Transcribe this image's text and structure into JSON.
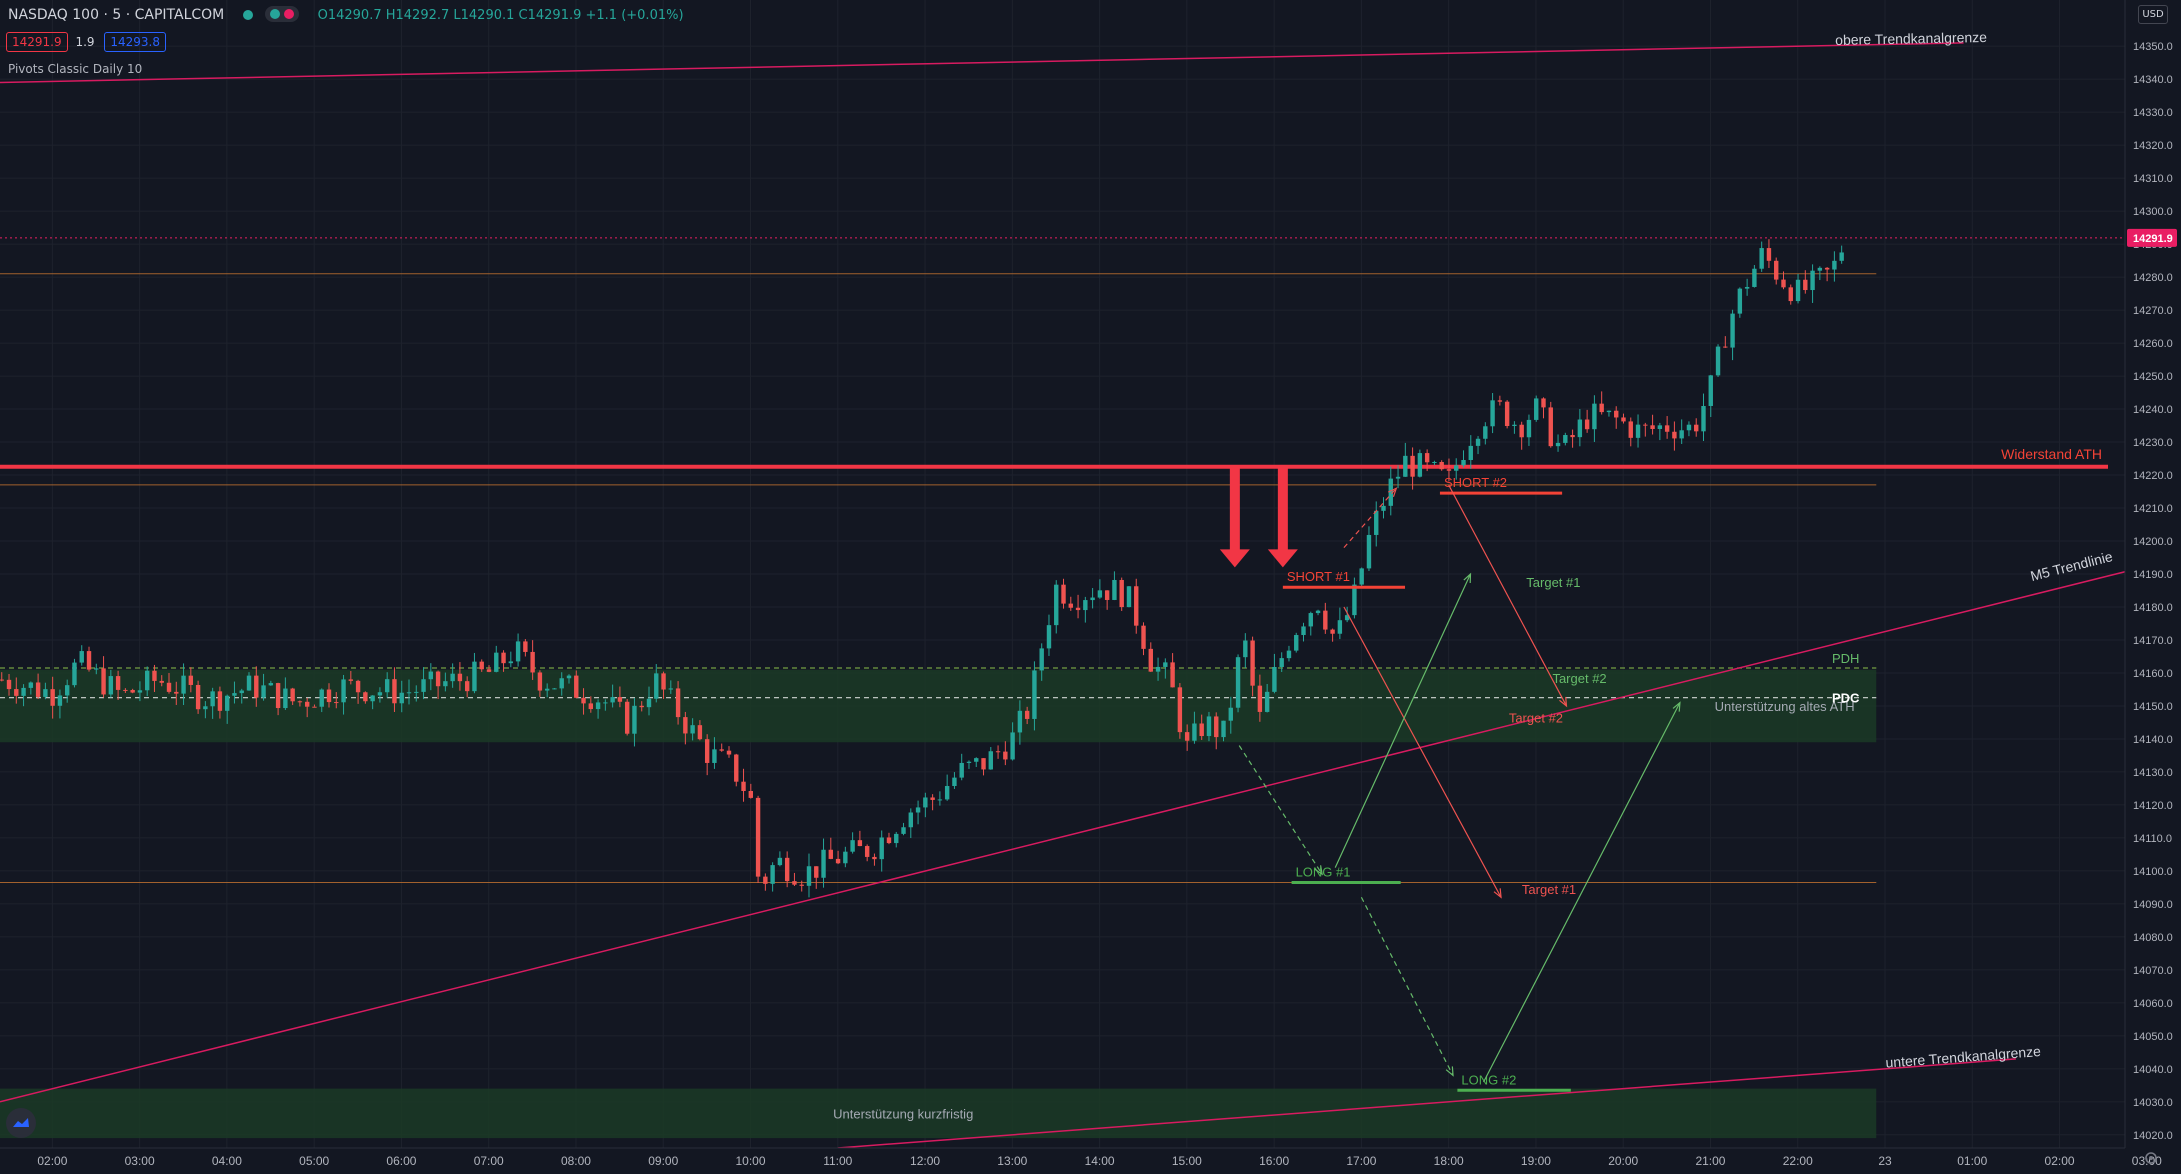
{
  "header": {
    "symbol": "NASDAQ 100 · 5 · CAPITALCOM",
    "ohlc": "O14290.7 H14292.7 L14290.1 C14291.9 +1.1 (+0.01%)",
    "sell_price": "14291.9",
    "spread": "1.9",
    "buy_price": "14293.8",
    "indicator": "Pivots Classic Daily 10",
    "currency": "USD"
  },
  "icons": [
    "gear-icon",
    "tradingview-logo-icon"
  ],
  "colors": {
    "background": "#131722",
    "up": "#26a69a",
    "down": "#ef5350",
    "resistance": "#f23645",
    "trend": "#d81b60",
    "zone": "#1b3a26",
    "long": "#4caf50",
    "short": "#f44336"
  },
  "chart_data": {
    "type": "candlestick",
    "title": "",
    "xlabel": "",
    "ylabel": "",
    "x_ticks": [
      "02:00",
      "03:00",
      "04:00",
      "05:00",
      "06:00",
      "07:00",
      "08:00",
      "09:00",
      "10:00",
      "11:00",
      "12:00",
      "13:00",
      "14:00",
      "15:00",
      "16:00",
      "17:00",
      "18:00",
      "19:00",
      "20:00",
      "21:00",
      "22:00",
      "23",
      "01:00",
      "02:00",
      "03:00"
    ],
    "y_ticks": [
      14020.0,
      14030.0,
      14040.0,
      14050.0,
      14060.0,
      14070.0,
      14080.0,
      14090.0,
      14100.0,
      14110.0,
      14120.0,
      14130.0,
      14140.0,
      14150.0,
      14160.0,
      14170.0,
      14180.0,
      14190.0,
      14200.0,
      14210.0,
      14220.0,
      14230.0,
      14240.0,
      14250.0,
      14260.0,
      14270.0,
      14280.0,
      14290.0,
      14300.0,
      14310.0,
      14320.0,
      14330.0,
      14340.0,
      14350.0
    ],
    "ylim": [
      14016,
      14364
    ],
    "xlim": [
      1.4,
      25.75
    ],
    "last_price": {
      "value": "14291.9",
      "time": 22.55
    },
    "price_path": [
      [
        1.42,
        14158
      ],
      [
        2.0,
        14154
      ],
      [
        2.3,
        14163
      ],
      [
        2.8,
        14153
      ],
      [
        3.2,
        14158
      ],
      [
        3.8,
        14152
      ],
      [
        4.3,
        14156
      ],
      [
        4.8,
        14151
      ],
      [
        5.3,
        14156
      ],
      [
        6.0,
        14154
      ],
      [
        6.5,
        14157
      ],
      [
        7.0,
        14160
      ],
      [
        7.3,
        14167
      ],
      [
        7.6,
        14158
      ],
      [
        8.0,
        14155
      ],
      [
        8.3,
        14152
      ],
      [
        8.6,
        14145
      ],
      [
        8.9,
        14158
      ],
      [
        9.2,
        14147
      ],
      [
        9.5,
        14136
      ],
      [
        9.8,
        14131
      ],
      [
        10.0,
        14122
      ],
      [
        10.1,
        14095
      ],
      [
        10.3,
        14103
      ],
      [
        10.6,
        14099
      ],
      [
        11.0,
        14104
      ],
      [
        11.4,
        14107
      ],
      [
        11.8,
        14118
      ],
      [
        12.1,
        14122
      ],
      [
        12.4,
        14130
      ],
      [
        12.7,
        14133
      ],
      [
        13.0,
        14140
      ],
      [
        13.2,
        14150
      ],
      [
        13.35,
        14170
      ],
      [
        13.5,
        14186
      ],
      [
        13.7,
        14183
      ],
      [
        14.0,
        14186
      ],
      [
        14.3,
        14184
      ],
      [
        14.45,
        14175
      ],
      [
        14.6,
        14163
      ],
      [
        14.8,
        14158
      ],
      [
        15.0,
        14137
      ],
      [
        15.2,
        14145
      ],
      [
        15.45,
        14141
      ],
      [
        15.55,
        14160
      ],
      [
        15.7,
        14170
      ],
      [
        15.8,
        14143
      ],
      [
        16.0,
        14159
      ],
      [
        16.15,
        14169
      ],
      [
        16.3,
        14176
      ],
      [
        16.5,
        14182
      ],
      [
        16.7,
        14170
      ],
      [
        16.9,
        14181
      ],
      [
        17.1,
        14202
      ],
      [
        17.3,
        14215
      ],
      [
        17.5,
        14224
      ],
      [
        17.7,
        14222
      ],
      [
        18.0,
        14218
      ],
      [
        18.2,
        14230
      ],
      [
        18.4,
        14238
      ],
      [
        18.6,
        14240
      ],
      [
        18.8,
        14235
      ],
      [
        19.0,
        14240
      ],
      [
        19.3,
        14227
      ],
      [
        19.6,
        14238
      ],
      [
        19.9,
        14237
      ],
      [
        20.2,
        14233
      ],
      [
        20.5,
        14235
      ],
      [
        20.8,
        14234
      ],
      [
        21.0,
        14246
      ],
      [
        21.2,
        14266
      ],
      [
        21.4,
        14278
      ],
      [
        21.6,
        14287
      ],
      [
        21.8,
        14280
      ],
      [
        22.0,
        14275
      ],
      [
        22.2,
        14278
      ],
      [
        22.4,
        14282
      ],
      [
        22.55,
        14291.9
      ]
    ],
    "series": [
      {
        "name": "PDH",
        "value": 14161.5,
        "x": [
          1.4,
          22.9
        ]
      },
      {
        "name": "PDC",
        "value": 14152.5,
        "x": [
          1.4,
          22.9
        ]
      }
    ],
    "horizontal_levels": [
      {
        "label": "Widerstand ATH",
        "value": 14222.5
      },
      {
        "label": "",
        "value": 14217.0
      },
      {
        "label": "",
        "value": 14281.0
      },
      {
        "label": "",
        "value": 14096.5
      }
    ],
    "zones": [
      {
        "label": "Unterstützung altes ATH",
        "from": 14139,
        "to": 14161
      },
      {
        "label": "Unterstützung kurzfristig",
        "from": 14019,
        "to": 14034
      }
    ],
    "trendlines": [
      {
        "label": "obere Trendkanalgrenze",
        "from": [
          1.4,
          14339
        ],
        "to": [
          23.9,
          14351
        ]
      },
      {
        "label": "M5 Trendlinie",
        "from": [
          1.4,
          14030
        ],
        "to": [
          26.1,
          14193
        ]
      },
      {
        "label": "untere Trendkanalgrenze",
        "from": [
          11.0,
          14016
        ],
        "to": [
          24.5,
          14043
        ]
      }
    ],
    "entries": [
      {
        "label": "SHORT #1",
        "value": 14186,
        "x": [
          16.1,
          17.5
        ]
      },
      {
        "label": "SHORT #2",
        "value": 14214.5,
        "x": [
          17.9,
          19.3
        ]
      },
      {
        "label": "LONG #1",
        "value": 14096.5,
        "x": [
          16.2,
          17.45
        ]
      },
      {
        "label": "LONG #2",
        "value": 14033.5,
        "x": [
          18.1,
          19.4
        ]
      }
    ],
    "targets": [
      {
        "label": "Target #1",
        "color": "green",
        "value": 14186
      },
      {
        "label": "Target #2",
        "color": "green",
        "value": 14157
      },
      {
        "label": "Target #2",
        "color": "red",
        "value": 14145
      },
      {
        "label": "Target #1",
        "color": "red",
        "value": 14093
      }
    ],
    "arrows": [
      {
        "type": "down",
        "time": 15.55
      },
      {
        "type": "down",
        "time": 16.1
      }
    ]
  }
}
